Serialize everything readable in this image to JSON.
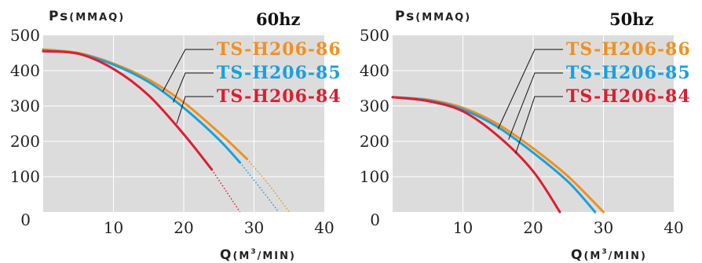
{
  "charts": [
    {
      "id": "left",
      "ylabel_main": "Ps",
      "ylabel_unit": "(MMAQ)",
      "xlabel_main": "Q",
      "xlabel_unit": "(M",
      "xlabel_sup": "3",
      "xlabel_tail": "/MIN)",
      "title": "60hz"
    },
    {
      "id": "right",
      "ylabel_main": "Ps",
      "ylabel_unit": "(MMAQ)",
      "xlabel_main": "Q",
      "xlabel_unit": "(M",
      "xlabel_sup": "3",
      "xlabel_tail": "/MIN)",
      "title": "50hz"
    }
  ],
  "colors": {
    "plot_bg": "#dcdcdc",
    "grid": "#ffffff",
    "s86": "#f0911e",
    "s85": "#1aa0dc",
    "s84": "#dc1e32"
  },
  "chart_data": [
    {
      "type": "line",
      "title": "60hz",
      "xlabel": "Q(M3/MIN)",
      "ylabel": "Ps(MMAQ)",
      "xlim": [
        0,
        40
      ],
      "ylim": [
        0,
        500
      ],
      "xticks": [
        "0",
        "10",
        "20",
        "30",
        "40"
      ],
      "yticks": [
        "0",
        "100",
        "200",
        "300",
        "400",
        "500"
      ],
      "grid": true,
      "legend_position": "top-right",
      "series": [
        {
          "name": "TS-H206-86",
          "color": "#f0911e",
          "points": [
            [
              0,
              460
            ],
            [
              5,
              450
            ],
            [
              10,
              420
            ],
            [
              15,
              375
            ],
            [
              20,
              310
            ],
            [
              25,
              225
            ],
            [
              29,
              150
            ]
          ],
          "dotted_points": [
            [
              29,
              150
            ],
            [
              32,
              80
            ],
            [
              35,
              0
            ]
          ]
        },
        {
          "name": "TS-H206-85",
          "color": "#1aa0dc",
          "points": [
            [
              0,
              457
            ],
            [
              5,
              448
            ],
            [
              10,
              417
            ],
            [
              15,
              368
            ],
            [
              20,
              295
            ],
            [
              25,
              205
            ],
            [
              28,
              140
            ]
          ],
          "dotted_points": [
            [
              28,
              140
            ],
            [
              31,
              65
            ],
            [
              33.5,
              0
            ]
          ]
        },
        {
          "name": "TS-H206-84",
          "color": "#dc1e32",
          "points": [
            [
              0,
              455
            ],
            [
              5,
              448
            ],
            [
              10,
              405
            ],
            [
              15,
              330
            ],
            [
              20,
              220
            ],
            [
              24,
              120
            ]
          ],
          "dotted_points": [
            [
              24,
              120
            ],
            [
              26,
              60
            ],
            [
              28,
              0
            ]
          ]
        }
      ],
      "annotations": [
        {
          "series": "TS-H206-86",
          "x": 17,
          "y": 340
        },
        {
          "series": "TS-H206-85",
          "x": 18.5,
          "y": 310
        },
        {
          "series": "TS-H206-84",
          "x": 19,
          "y": 250
        }
      ]
    },
    {
      "type": "line",
      "title": "50hz",
      "xlabel": "Q(M3/MIN)",
      "ylabel": "Ps(MMAQ)",
      "xlim": [
        0,
        40
      ],
      "ylim": [
        0,
        500
      ],
      "xticks": [
        "0",
        "10",
        "20",
        "30",
        "40"
      ],
      "yticks": [
        "0",
        "100",
        "200",
        "300",
        "400",
        "500"
      ],
      "grid": true,
      "legend_position": "top-right",
      "series": [
        {
          "name": "TS-H206-86",
          "color": "#f0911e",
          "points": [
            [
              0,
              325
            ],
            [
              5,
              318
            ],
            [
              10,
              295
            ],
            [
              15,
              248
            ],
            [
              20,
              180
            ],
            [
              25,
              100
            ],
            [
              30,
              0
            ]
          ]
        },
        {
          "name": "TS-H206-85",
          "color": "#1aa0dc",
          "points": [
            [
              0,
              325
            ],
            [
              5,
              316
            ],
            [
              10,
              290
            ],
            [
              15,
              240
            ],
            [
              20,
              168
            ],
            [
              25,
              85
            ],
            [
              28.8,
              0
            ]
          ]
        },
        {
          "name": "TS-H206-84",
          "color": "#dc1e32",
          "points": [
            [
              0,
              325
            ],
            [
              5,
              314
            ],
            [
              10,
              285
            ],
            [
              15,
              215
            ],
            [
              20,
              115
            ],
            [
              23.8,
              0
            ]
          ]
        }
      ],
      "annotations": [
        {
          "series": "TS-H206-86",
          "x": 15,
          "y": 235
        },
        {
          "series": "TS-H206-85",
          "x": 16.5,
          "y": 205
        },
        {
          "series": "TS-H206-84",
          "x": 17.5,
          "y": 165
        }
      ]
    }
  ]
}
